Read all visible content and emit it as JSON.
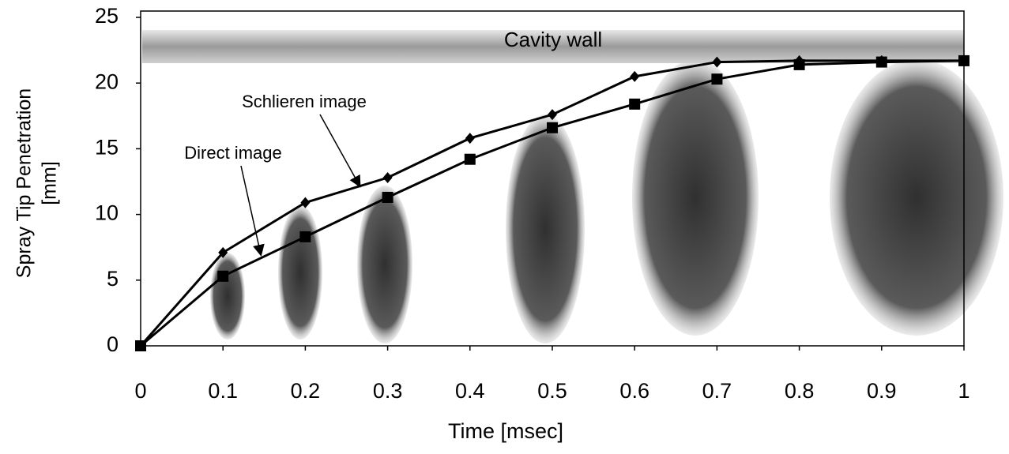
{
  "chart_data": {
    "type": "line",
    "xlabel": "Time [msec]",
    "ylabel": [
      "Spray Tip Penetration",
      "[mm]"
    ],
    "annotations": [
      "Cavity  wall",
      "Schlieren image",
      "Direct image"
    ],
    "xlim": [
      0,
      1
    ],
    "xticks": [
      0,
      0.1,
      0.2,
      0.3,
      0.4,
      0.5,
      0.6,
      0.7,
      0.8,
      0.9,
      1
    ],
    "ylim": [
      0,
      25
    ],
    "yticks": [
      0,
      5,
      10,
      15,
      20,
      25
    ],
    "grid": false,
    "series": [
      {
        "name": "Schlieren image",
        "color": "#000000",
        "marker": "diamond",
        "x": [
          0,
          0.1,
          0.2,
          0.3,
          0.4,
          0.5,
          0.6,
          0.7,
          0.8,
          0.9,
          1
        ],
        "values": [
          0,
          7.1,
          10.9,
          12.8,
          15.8,
          17.6,
          20.5,
          21.6,
          21.7,
          21.7,
          21.7
        ]
      },
      {
        "name": "Direct image",
        "color": "#000000",
        "marker": "square",
        "x": [
          0,
          0.1,
          0.2,
          0.3,
          0.4,
          0.5,
          0.6,
          0.7,
          0.8,
          0.9,
          1
        ],
        "values": [
          0,
          5.3,
          8.3,
          11.3,
          14.2,
          16.6,
          18.4,
          20.3,
          21.4,
          21.6,
          21.7
        ]
      }
    ]
  }
}
